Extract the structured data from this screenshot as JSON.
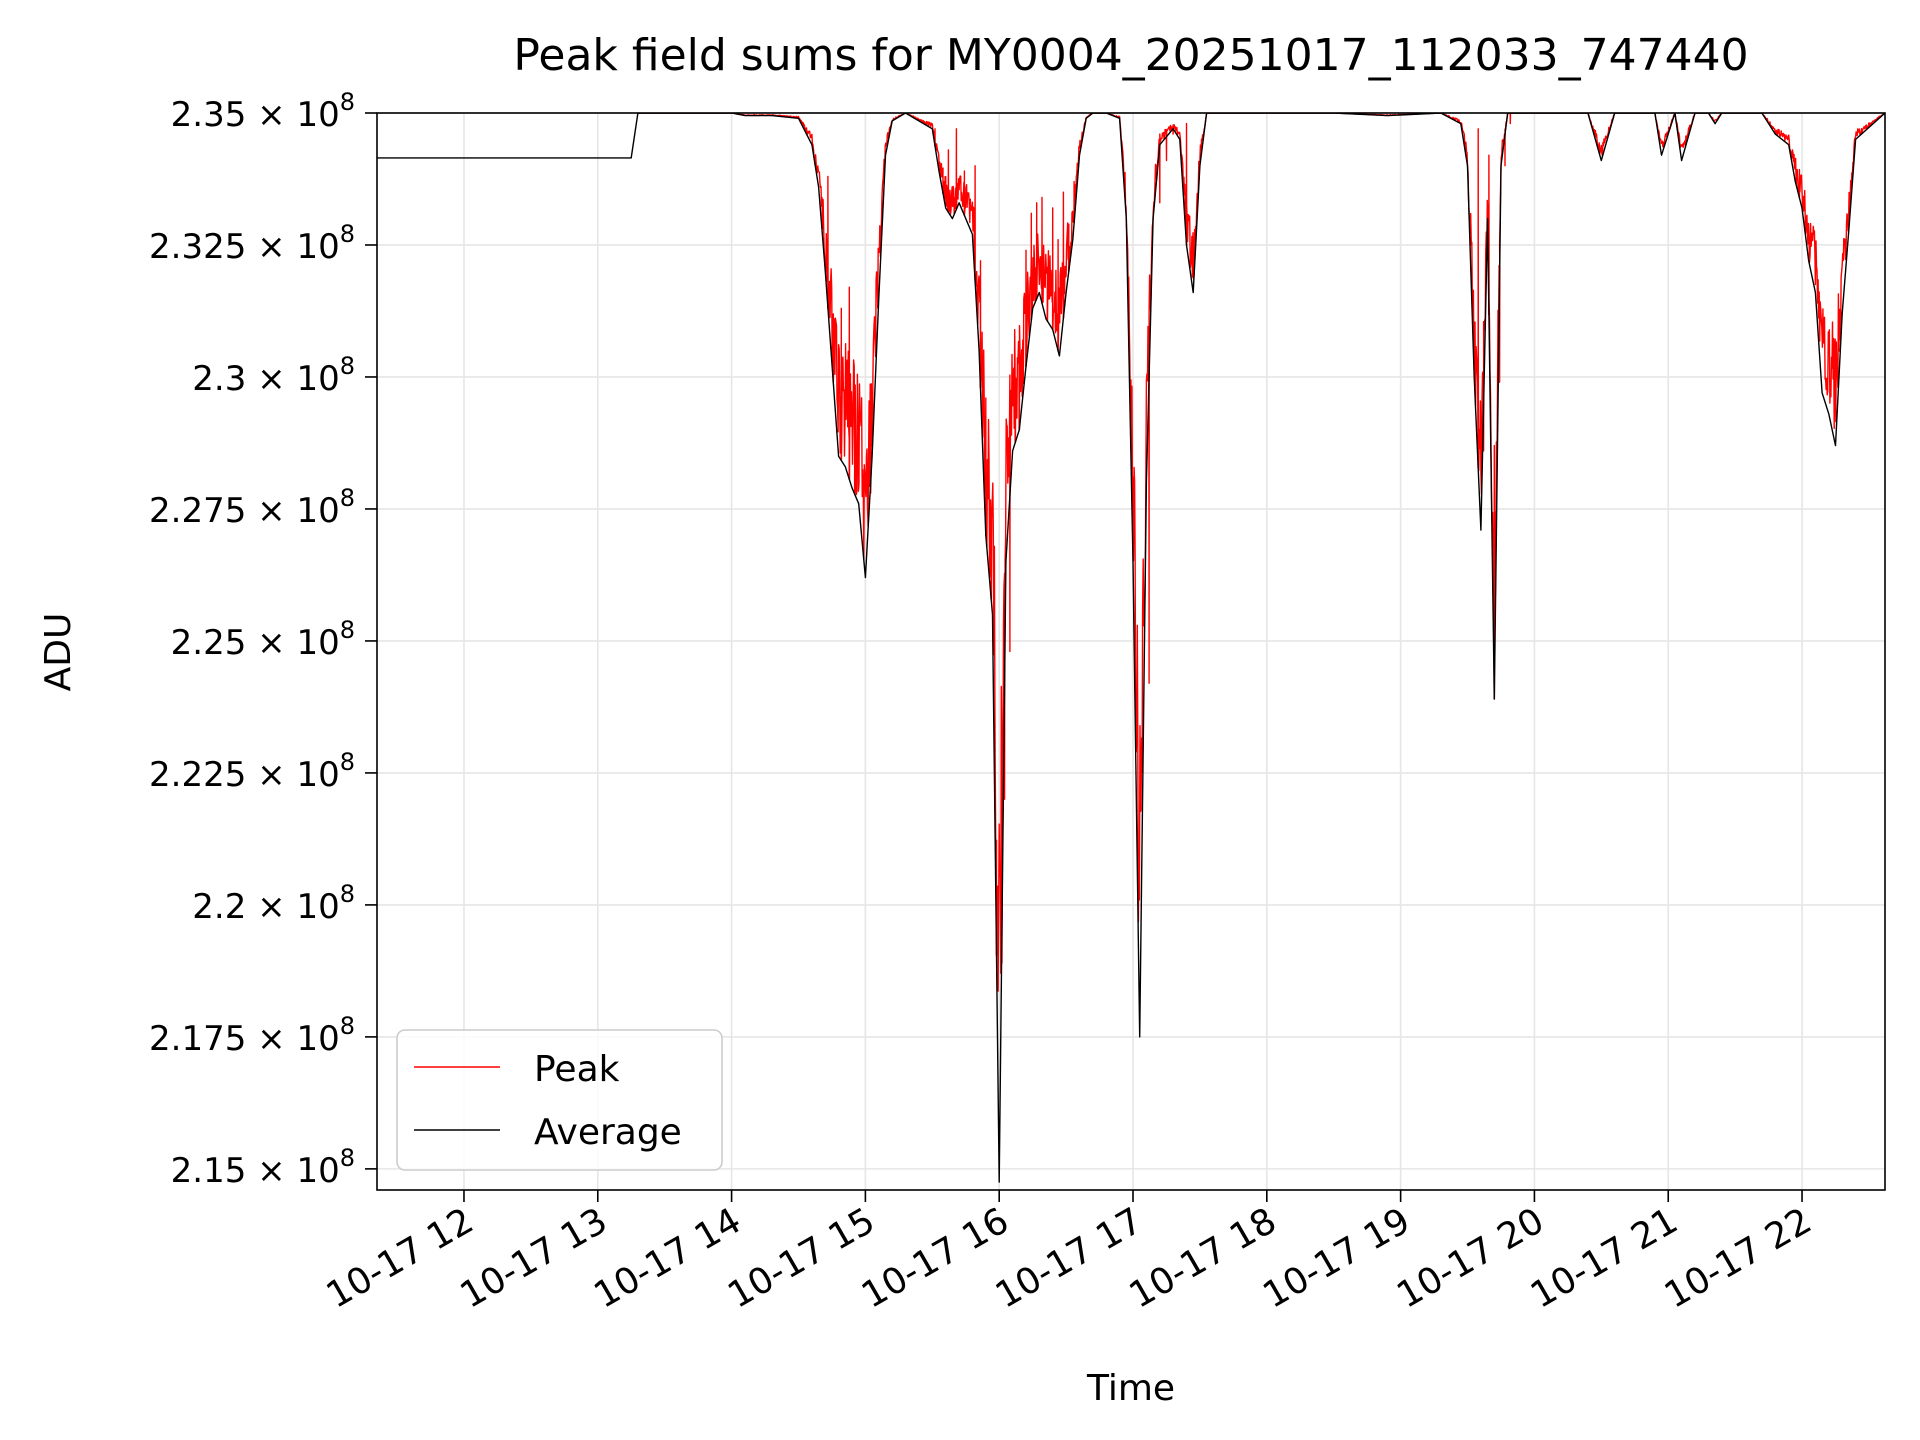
{
  "chart_data": {
    "type": "line",
    "title": "Peak field sums for MY0004_20251017_112033_747440",
    "xlabel": "Time",
    "ylabel": "ADU",
    "x_unit": "hours since 2025-10-17 00:00",
    "xlim": [
      11.35,
      22.62
    ],
    "ylim": [
      214600000,
      235000000
    ],
    "x_ticks": [
      {
        "value": 12,
        "label": "10-17 12"
      },
      {
        "value": 13,
        "label": "10-17 13"
      },
      {
        "value": 14,
        "label": "10-17 14"
      },
      {
        "value": 15,
        "label": "10-17 15"
      },
      {
        "value": 16,
        "label": "10-17 16"
      },
      {
        "value": 17,
        "label": "10-17 17"
      },
      {
        "value": 18,
        "label": "10-17 18"
      },
      {
        "value": 19,
        "label": "10-17 19"
      },
      {
        "value": 20,
        "label": "10-17 20"
      },
      {
        "value": 21,
        "label": "10-17 21"
      },
      {
        "value": 22,
        "label": "10-17 22"
      }
    ],
    "y_ticks": [
      {
        "value": 235000000,
        "mantissa": "2.35"
      },
      {
        "value": 232500000,
        "mantissa": "2.325"
      },
      {
        "value": 230000000,
        "mantissa": "2.3"
      },
      {
        "value": 227500000,
        "mantissa": "2.275"
      },
      {
        "value": 225000000,
        "mantissa": "2.25"
      },
      {
        "value": 222500000,
        "mantissa": "2.225"
      },
      {
        "value": 220000000,
        "mantissa": "2.2"
      },
      {
        "value": 217500000,
        "mantissa": "2.175"
      },
      {
        "value": 215000000,
        "mantissa": "2.15"
      }
    ],
    "y_tick_exponent_base": "× 10",
    "y_tick_exponent": "8",
    "grid": true,
    "legend": {
      "position": "lower-left",
      "entries": [
        {
          "label": "Peak",
          "color": "#ff0000"
        },
        {
          "label": "Average",
          "color": "#000000"
        }
      ]
    },
    "series": [
      {
        "name": "Average",
        "color": "#000000",
        "x": [
          11.35,
          13.25,
          13.3,
          13.35,
          14.0,
          14.1,
          14.3,
          14.5,
          14.6,
          14.65,
          14.7,
          14.8,
          14.85,
          14.9,
          14.95,
          15.0,
          15.05,
          15.1,
          15.15,
          15.2,
          15.3,
          15.5,
          15.55,
          15.6,
          15.65,
          15.7,
          15.8,
          15.85,
          15.9,
          15.95,
          16.0,
          16.05,
          16.1,
          16.15,
          16.2,
          16.25,
          16.3,
          16.35,
          16.4,
          16.45,
          16.5,
          16.55,
          16.6,
          16.65,
          16.7,
          16.8,
          16.9,
          16.95,
          17.0,
          17.05,
          17.1,
          17.15,
          17.2,
          17.3,
          17.35,
          17.4,
          17.45,
          17.5,
          17.55,
          18.5,
          18.9,
          19.3,
          19.45,
          19.5,
          19.55,
          19.6,
          19.65,
          19.7,
          19.75,
          19.8,
          19.85,
          19.9,
          20.4,
          20.5,
          20.6,
          20.9,
          20.95,
          21.0,
          21.05,
          21.1,
          21.2,
          21.3,
          21.35,
          21.4,
          21.7,
          21.8,
          21.9,
          21.95,
          22.0,
          22.05,
          22.1,
          22.15,
          22.2,
          22.25,
          22.3,
          22.35,
          22.4,
          22.62
        ],
        "y": [
          234150000,
          234150000,
          235000000,
          235000000,
          235000000,
          234950000,
          234950000,
          234900000,
          234400000,
          233600000,
          232000000,
          228500000,
          228300000,
          227900000,
          227600000,
          226200000,
          228500000,
          231500000,
          234200000,
          234850000,
          235000000,
          234700000,
          233900000,
          233200000,
          233000000,
          233300000,
          232700000,
          230500000,
          227000000,
          225500000,
          214750000,
          226500000,
          228600000,
          229000000,
          230200000,
          231300000,
          231600000,
          231100000,
          230900000,
          230400000,
          231600000,
          232600000,
          234200000,
          234900000,
          235000000,
          235000000,
          234900000,
          233000000,
          226500000,
          217500000,
          228000000,
          233000000,
          234400000,
          234700000,
          234500000,
          232500000,
          231600000,
          234000000,
          235000000,
          235000000,
          234950000,
          235000000,
          234800000,
          234000000,
          230000000,
          227100000,
          233000000,
          223900000,
          234000000,
          235000000,
          235000000,
          235000000,
          235000000,
          234100000,
          235000000,
          235000000,
          234200000,
          234600000,
          235000000,
          234100000,
          235000000,
          235000000,
          234800000,
          235000000,
          235000000,
          234600000,
          234400000,
          233700000,
          233200000,
          232200000,
          231600000,
          229700000,
          229300000,
          228700000,
          231200000,
          232800000,
          234500000,
          235000000
        ]
      },
      {
        "name": "Peak",
        "color": "#ff0000",
        "spikes": [
          {
            "x": 14.72,
            "y": 233800000
          },
          {
            "x": 14.76,
            "y": 230000000
          },
          {
            "x": 14.82,
            "y": 231300000
          },
          {
            "x": 14.88,
            "y": 231700000
          },
          {
            "x": 14.92,
            "y": 229100000
          },
          {
            "x": 15.04,
            "y": 227800000
          },
          {
            "x": 15.52,
            "y": 234700000
          },
          {
            "x": 15.58,
            "y": 233800000
          },
          {
            "x": 15.62,
            "y": 234300000
          },
          {
            "x": 15.68,
            "y": 234700000
          },
          {
            "x": 15.74,
            "y": 233900000
          },
          {
            "x": 15.82,
            "y": 234000000
          },
          {
            "x": 15.86,
            "y": 232200000
          },
          {
            "x": 15.9,
            "y": 229600000
          },
          {
            "x": 15.94,
            "y": 226200000
          },
          {
            "x": 15.98,
            "y": 219500000
          },
          {
            "x": 16.02,
            "y": 218900000
          },
          {
            "x": 16.04,
            "y": 222000000
          },
          {
            "x": 16.08,
            "y": 224800000
          },
          {
            "x": 16.12,
            "y": 229900000
          },
          {
            "x": 16.15,
            "y": 230100000
          },
          {
            "x": 16.2,
            "y": 232400000
          },
          {
            "x": 16.24,
            "y": 233100000
          },
          {
            "x": 16.28,
            "y": 233300000
          },
          {
            "x": 16.32,
            "y": 233400000
          },
          {
            "x": 16.36,
            "y": 232000000
          },
          {
            "x": 16.4,
            "y": 233200000
          },
          {
            "x": 16.44,
            "y": 232600000
          },
          {
            "x": 16.48,
            "y": 233500000
          },
          {
            "x": 16.52,
            "y": 232100000
          },
          {
            "x": 16.56,
            "y": 233700000
          },
          {
            "x": 17.12,
            "y": 224200000
          },
          {
            "x": 17.2,
            "y": 233300000
          },
          {
            "x": 17.25,
            "y": 234100000
          },
          {
            "x": 17.3,
            "y": 234600000
          },
          {
            "x": 17.4,
            "y": 234800000
          },
          {
            "x": 19.58,
            "y": 234700000
          },
          {
            "x": 19.62,
            "y": 228600000
          },
          {
            "x": 19.66,
            "y": 234200000
          },
          {
            "x": 19.7,
            "y": 228700000
          },
          {
            "x": 19.74,
            "y": 229900000
          },
          {
            "x": 19.78,
            "y": 234000000
          },
          {
            "x": 19.82,
            "y": 234800000
          },
          {
            "x": 21.98,
            "y": 233800000
          }
        ]
      }
    ]
  }
}
